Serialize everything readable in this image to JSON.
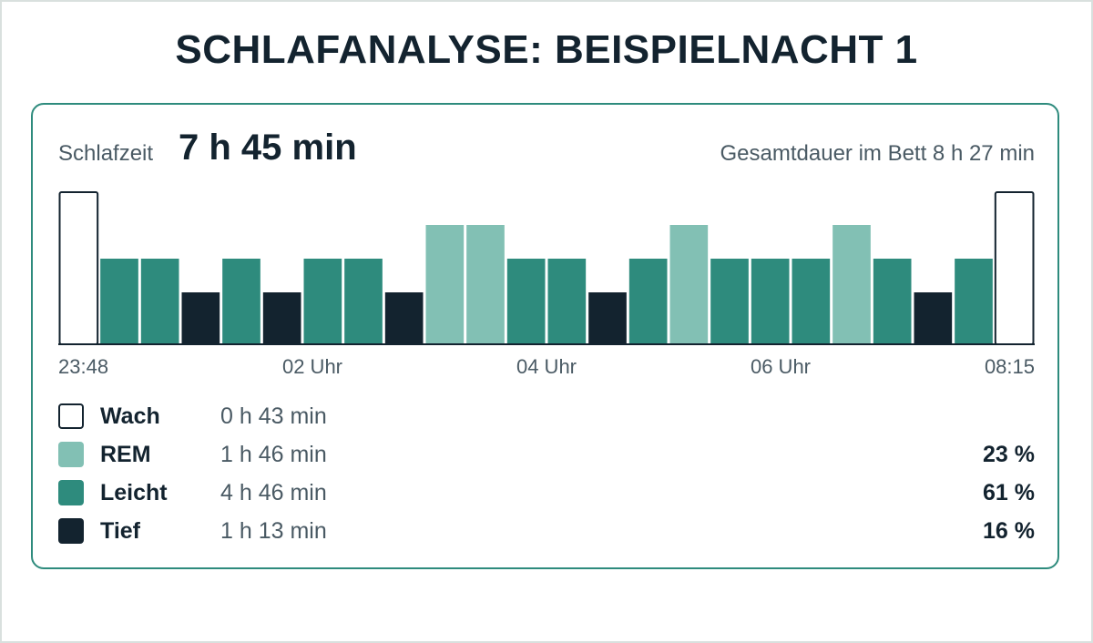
{
  "title": "SCHLAFANALYSE: BEISPIELNACHT 1",
  "summary": {
    "sleep_label": "Schlafzeit",
    "sleep_value": "7 h 45 min",
    "bed_total": "Gesamtdauer im Bett 8 h 27 min"
  },
  "colors": {
    "accent": "#2e8b7d",
    "Wach": "#ffffff",
    "REM": "#82c0b4",
    "Leicht": "#2e8b7d",
    "Tief": "#13232f"
  },
  "chart_data": {
    "type": "bar",
    "stage_levels": {
      "Wach": 4,
      "REM": 3,
      "Leicht": 2,
      "Tief": 1
    },
    "stages": [
      "Wach",
      "Leicht",
      "Leicht",
      "Tief",
      "Leicht",
      "Tief",
      "Leicht",
      "Leicht",
      "Tief",
      "REM",
      "REM",
      "Leicht",
      "Leicht",
      "Tief",
      "Leicht",
      "REM",
      "Leicht",
      "Leicht",
      "Leicht",
      "REM",
      "Leicht",
      "Tief",
      "Leicht",
      "Wach"
    ],
    "x_ticks": [
      "23:48",
      "02 Uhr",
      "04 Uhr",
      "06 Uhr",
      "08:15"
    ],
    "grid": false
  },
  "legend": [
    {
      "name": "Wach",
      "duration": "0 h 43 min",
      "percent": ""
    },
    {
      "name": "REM",
      "duration": "1 h 46 min",
      "percent": "23 %"
    },
    {
      "name": "Leicht",
      "duration": "4 h 46 min",
      "percent": "61 %"
    },
    {
      "name": "Tief",
      "duration": "1 h 13 min",
      "percent": "16 %"
    }
  ]
}
